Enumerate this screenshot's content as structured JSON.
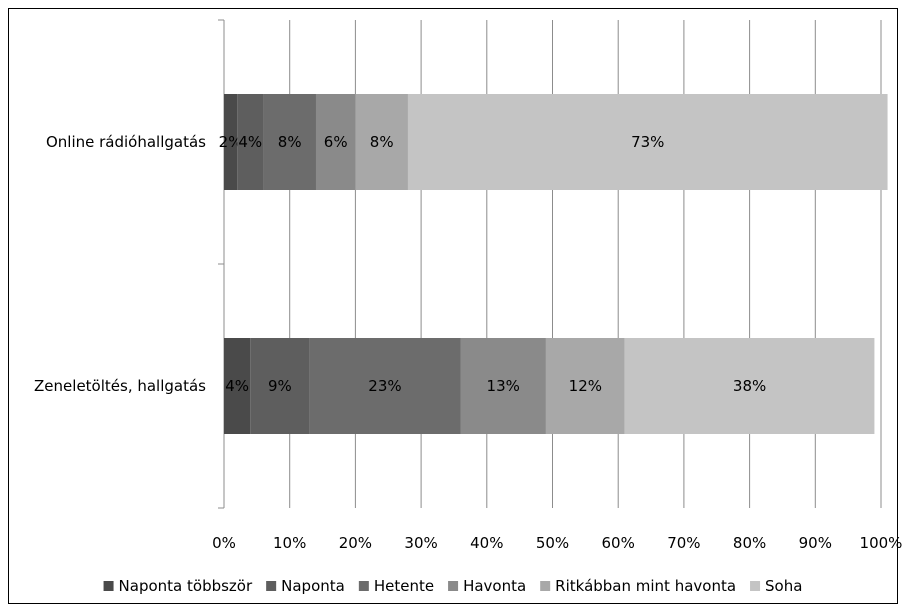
{
  "chart_data": {
    "type": "bar",
    "orientation": "horizontal",
    "stacked": "percent",
    "categories": [
      "Online rádióhallgatás",
      "Zeneletöltés, hallgatás"
    ],
    "series": [
      {
        "name": "Naponta többször",
        "values": [
          2,
          4
        ],
        "labels": [
          "2%",
          "4%"
        ],
        "color": "#4a4a4a"
      },
      {
        "name": "Naponta",
        "values": [
          4,
          9
        ],
        "labels": [
          "4%",
          "9%"
        ],
        "color": "#5e5e5e"
      },
      {
        "name": "Hetente",
        "values": [
          8,
          23
        ],
        "labels": [
          "8%",
          "23%"
        ],
        "color": "#6c6c6c"
      },
      {
        "name": "Havonta",
        "values": [
          6,
          13
        ],
        "labels": [
          "6%",
          "13%"
        ],
        "color": "#8a8a8a"
      },
      {
        "name": "Ritkábban mint havonta",
        "values": [
          8,
          12
        ],
        "labels": [
          "8%",
          "12%"
        ],
        "color": "#a8a8a8"
      },
      {
        "name": "Soha",
        "values": [
          73,
          38
        ],
        "labels": [
          "73%",
          "38%"
        ],
        "color": "#c4c4c4"
      }
    ],
    "x_ticks": [
      "0%",
      "10%",
      "20%",
      "30%",
      "40%",
      "50%",
      "60%",
      "70%",
      "80%",
      "90%",
      "100%"
    ],
    "xlim": [
      0,
      100
    ],
    "grid": "vertical",
    "legend": "bottom"
  }
}
